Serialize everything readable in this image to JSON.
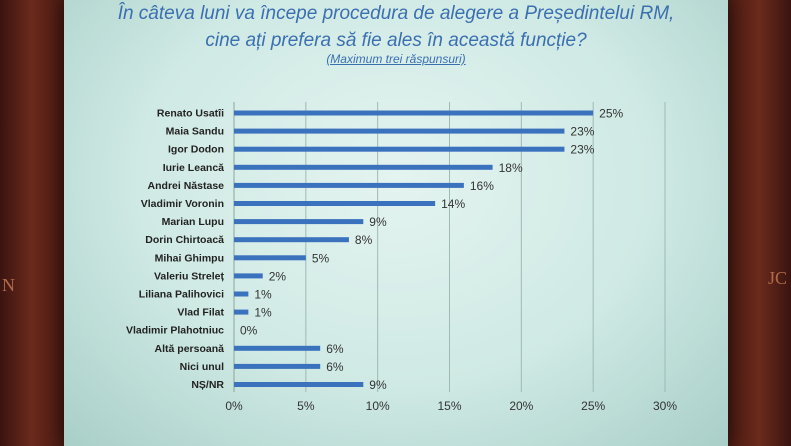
{
  "header": {
    "title_line1": "În câteva luni va începe procedura de alegere a Președintelui RM,",
    "title_line2": "cine ați prefera să fie ales în această funcție?",
    "subtitle": "(Maximum trei răspunsuri)"
  },
  "background": {
    "left_text": "N",
    "right_text": "JC"
  },
  "chart_data": {
    "type": "bar",
    "orientation": "horizontal",
    "categories": [
      "Renato Usatîi",
      "Maia Sandu",
      "Igor Dodon",
      "Iurie Leancă",
      "Andrei Năstase",
      "Vladimir Voronin",
      "Marian Lupu",
      "Dorin Chirtoacă",
      "Mihai Ghimpu",
      "Valeriu Streleț",
      "Liliana Palihovici",
      "Vlad Filat",
      "Vladimir Plahotniuc",
      "Altă persoană",
      "Nici unul",
      "NȘ/NR"
    ],
    "values": [
      25,
      23,
      23,
      18,
      16,
      14,
      9,
      8,
      5,
      2,
      1,
      1,
      0,
      6,
      6,
      9
    ],
    "value_labels": [
      "25%",
      "23%",
      "23%",
      "18%",
      "16%",
      "14%",
      "9%",
      "8%",
      "5%",
      "2%",
      "1%",
      "1%",
      "0%",
      "6%",
      "6%",
      "9%"
    ],
    "xlim": [
      0,
      30
    ],
    "x_ticks": [
      0,
      5,
      10,
      15,
      20,
      25,
      30
    ],
    "x_tick_labels": [
      "0%",
      "5%",
      "10%",
      "15%",
      "20%",
      "25%",
      "30%"
    ],
    "grid": true,
    "bar_color": "#3b72bd"
  }
}
